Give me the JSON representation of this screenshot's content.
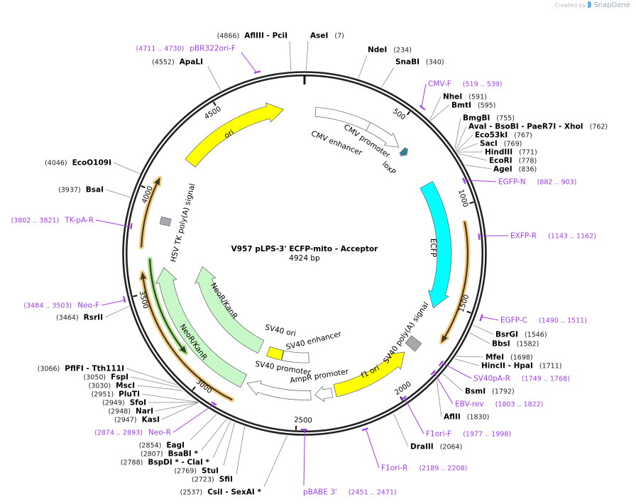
{
  "watermark": {
    "created_by": "Created by",
    "brand": "SnapGene"
  },
  "plasmid": {
    "name": "V957 pLPS-3' ECFP-mito - Acceptor",
    "length_label": "4924 bp",
    "length_bp": 4924
  },
  "ticks": [
    "500",
    "1000",
    "1500",
    "2000",
    "2500",
    "3000",
    "3500",
    "4000",
    "4500"
  ],
  "colors": {
    "primer": "#a13cf0",
    "enzyme_line": "#8a8a8a",
    "backbone": "#222222"
  },
  "enzymes": [
    {
      "name": "AseI",
      "pos": "(7)",
      "bp": 7
    },
    {
      "name": "AflIII  - PciI",
      "pos": "(4866)",
      "bp": 4866
    },
    {
      "name": "NdeI",
      "pos": "(234)",
      "bp": 234
    },
    {
      "name": "SnaBI",
      "pos": "(340)",
      "bp": 340
    },
    {
      "name": "NheI",
      "pos": "(591)",
      "bp": 591
    },
    {
      "name": "BmtI",
      "pos": "(595)",
      "bp": 595
    },
    {
      "name": "BmgBI",
      "pos": "(755)",
      "bp": 755
    },
    {
      "name": "AvaI  - BsoBI  - PaeR7I  - XhoI",
      "pos": "(762)",
      "bp": 762
    },
    {
      "name": "Eco53kI",
      "pos": "(767)",
      "bp": 767
    },
    {
      "name": "SacI",
      "pos": "(769)",
      "bp": 769
    },
    {
      "name": "HindIII",
      "pos": "(771)",
      "bp": 771
    },
    {
      "name": "EcoRI",
      "pos": "(778)",
      "bp": 778
    },
    {
      "name": "AgeI",
      "pos": "(836)",
      "bp": 836
    },
    {
      "name": "BsrGI",
      "pos": "(1546)",
      "bp": 1546
    },
    {
      "name": "BbsI",
      "pos": "(1582)",
      "bp": 1582
    },
    {
      "name": "MfeI",
      "pos": "(1698)",
      "bp": 1698
    },
    {
      "name": "HincII  - HpaI",
      "pos": "(1711)",
      "bp": 1711
    },
    {
      "name": "BsmI",
      "pos": "(1792)",
      "bp": 1792
    },
    {
      "name": "AflII",
      "pos": "(1830)",
      "bp": 1830
    },
    {
      "name": "DraIII",
      "pos": "(2064)",
      "bp": 2064
    },
    {
      "name": "CsiI  - SexAI *",
      "pos": "(2537)",
      "bp": 2537
    },
    {
      "name": "SfiI",
      "pos": "(2723)",
      "bp": 2723
    },
    {
      "name": "StuI",
      "pos": "(2769)",
      "bp": 2769
    },
    {
      "name": "BspDI *  - ClaI *",
      "pos": "(2788)",
      "bp": 2788
    },
    {
      "name": "BsaBI *",
      "pos": "(2807)",
      "bp": 2807
    },
    {
      "name": "EagI",
      "pos": "(2854)",
      "bp": 2854
    },
    {
      "name": "KasI",
      "pos": "(2947)",
      "bp": 2947
    },
    {
      "name": "NarI",
      "pos": "(2948)",
      "bp": 2948
    },
    {
      "name": "SfoI",
      "pos": "(2949)",
      "bp": 2949
    },
    {
      "name": "PluTI",
      "pos": "(2951)",
      "bp": 2951
    },
    {
      "name": "MscI",
      "pos": "(3030)",
      "bp": 3030
    },
    {
      "name": "FspI",
      "pos": "(3050)",
      "bp": 3050
    },
    {
      "name": "PflFI  - Tth111I",
      "pos": "(3066)",
      "bp": 3066
    },
    {
      "name": "RsrII",
      "pos": "(3464)",
      "bp": 3464
    },
    {
      "name": "BsaI",
      "pos": "(3937)",
      "bp": 3937
    },
    {
      "name": "EcoO109I",
      "pos": "(4046)",
      "bp": 4046
    },
    {
      "name": "ApaLI",
      "pos": "(4552)",
      "bp": 4552
    }
  ],
  "primers": [
    {
      "name": "CMV-F",
      "range": "(519 .. 539)",
      "start": 519,
      "end": 539
    },
    {
      "name": "EGFP-N",
      "range": "(882 .. 903)",
      "start": 882,
      "end": 903
    },
    {
      "name": "EXFP-R",
      "range": "(1143 .. 1162)",
      "start": 1143,
      "end": 1162
    },
    {
      "name": "EGFP-C",
      "range": "(1490 .. 1511)",
      "start": 1490,
      "end": 1511
    },
    {
      "name": "SV40pA-R",
      "range": "(1749 .. 1768)",
      "start": 1749,
      "end": 1768
    },
    {
      "name": "EBV-rev",
      "range": "(1803 .. 1822)",
      "start": 1803,
      "end": 1822
    },
    {
      "name": "F1ori-F",
      "range": "(1977 .. 1998)",
      "start": 1977,
      "end": 1998
    },
    {
      "name": "F1ori-R",
      "range": "(2189 .. 2208)",
      "start": 2189,
      "end": 2208
    },
    {
      "name": "pBABE 3'",
      "range": "(2451 .. 2471)",
      "start": 2451,
      "end": 2471
    },
    {
      "name": "Neo-R",
      "range": "(2874 .. 2893)",
      "start": 2874,
      "end": 2893
    },
    {
      "name": "Neo-F",
      "range": "(3484 .. 3503)",
      "start": 3484,
      "end": 3503
    },
    {
      "name": "TK-pA-R",
      "range": "(3802 .. 3821)",
      "start": 3802,
      "end": 3821
    },
    {
      "name": "pBR322ori-F",
      "range": "(4711 .. 4730)",
      "start": 4711,
      "end": 4730
    }
  ],
  "features": [
    {
      "label": "ori",
      "start": 4217,
      "end": 4811,
      "direction": 1,
      "color": "#ffff00"
    },
    {
      "label": "CMV enhancer",
      "start": 61,
      "end": 365,
      "direction": 0,
      "color": "#ffffff"
    },
    {
      "label": "CMV promoter",
      "start": 365,
      "end": 569,
      "direction": 1,
      "color": "#ffffff"
    },
    {
      "label": "loxP",
      "start": 595,
      "end": 630,
      "direction": 1,
      "color": "#2f7f98"
    },
    {
      "label": "ECFP",
      "start": 829,
      "end": 1545,
      "direction": 1,
      "color": "#00ffff"
    },
    {
      "label": "SV40 poly(A) signal",
      "start": 1745,
      "end": 1800,
      "direction": 0,
      "color": "#a6a9ae"
    },
    {
      "label": "f1 ori",
      "start": 1841,
      "end": 2290,
      "direction": -1,
      "color": "#ffff00"
    },
    {
      "label": "AmpR promoter",
      "start": 2310,
      "end": 2405,
      "direction": 1,
      "color": "#ffffff"
    },
    {
      "label": "SV40 promoter",
      "start": 2427,
      "end": 2789,
      "direction": 1,
      "color": "#ffffff"
    },
    {
      "label": "SV40 enhancer",
      "start": 2430,
      "end": 2625,
      "direction": 0,
      "color": "#ffffff"
    },
    {
      "label": "SV40 ori",
      "start": 2630,
      "end": 2740,
      "direction": 0,
      "color": "#ffff00"
    },
    {
      "label": "NeoR/KanR",
      "start": 2804,
      "end": 3592,
      "direction": 1,
      "color": "#c8f7c8"
    },
    {
      "label": "NeoR/KanR",
      "start": 2811,
      "end": 3615,
      "direction": 1,
      "color": "#c8f7c8"
    },
    {
      "label": "HSV TK poly(A) signal",
      "start": 3850,
      "end": 3890,
      "direction": 0,
      "color": "#a6a9ae"
    },
    {
      "start": 1078,
      "end": 1684,
      "direction": 1,
      "color": "#f7c77a"
    },
    {
      "start": 2822,
      "end": 3604,
      "direction": 1,
      "color": "#f7c77a"
    },
    {
      "start": 3723,
      "end": 4072,
      "direction": 1,
      "color": "#f7c77a"
    },
    {
      "start": 3142,
      "end": 3665,
      "direction": -1,
      "color": "#a6e88a"
    }
  ]
}
